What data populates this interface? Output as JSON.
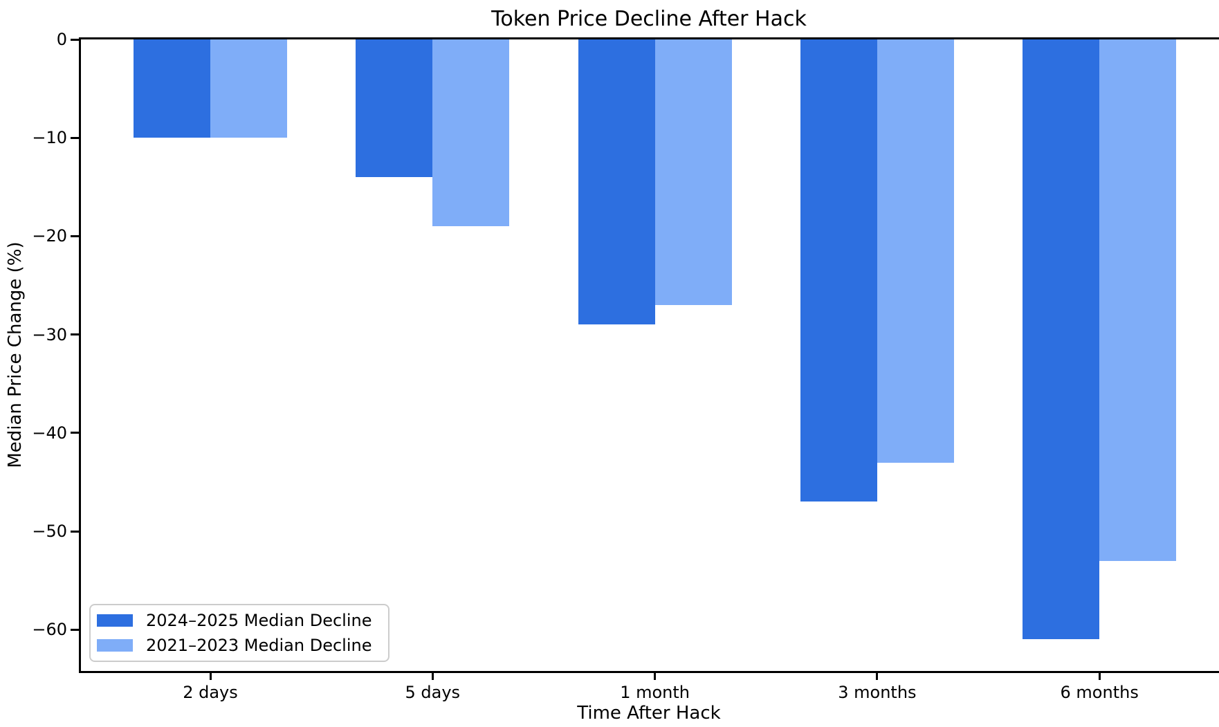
{
  "chart_data": {
    "type": "bar",
    "title": "Token Price Decline After Hack",
    "xlabel": "Time After Hack",
    "ylabel": "Median Price Change (%)",
    "categories": [
      "2 days",
      "5 days",
      "1 month",
      "3 months",
      "6 months"
    ],
    "series": [
      {
        "name": "2024–2025 Median Decline",
        "color": "#2d6fe0",
        "values": [
          -10,
          -14,
          -29,
          -47,
          -61
        ]
      },
      {
        "name": "2021–2023 Median Decline",
        "color": "#7fadf8",
        "values": [
          -10,
          -19,
          -27,
          -43,
          -53
        ]
      }
    ],
    "yticks": [
      0,
      -10,
      -20,
      -30,
      -40,
      -50,
      -60
    ],
    "ylim": [
      -64.2,
      0
    ],
    "grid": false,
    "legend_position": "lower left",
    "background_color": "#ffffff",
    "spine_color": "#000000"
  }
}
